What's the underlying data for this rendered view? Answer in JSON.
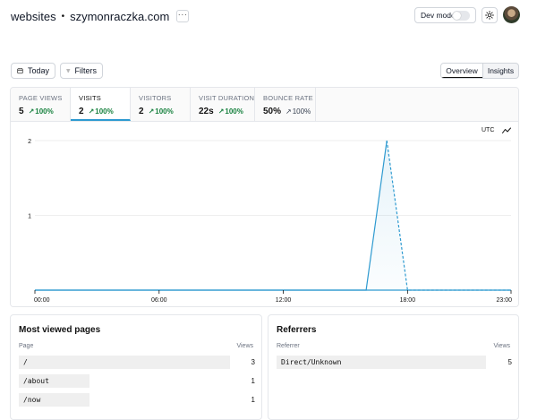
{
  "header": {
    "site_name": "websites",
    "separator": "•",
    "domain": "szymonraczka.com",
    "more_label": "···",
    "dev_mode_label": "Dev mode",
    "dev_mode_on": false
  },
  "toolbar": {
    "today_label": "Today",
    "filters_label": "Filters",
    "tabs": [
      {
        "label": "Overview",
        "active": true
      },
      {
        "label": "Insights",
        "active": false
      }
    ]
  },
  "stats": [
    {
      "label": "PAGE VIEWS",
      "value": "5",
      "change": "100%",
      "trend": "up",
      "active": false
    },
    {
      "label": "VISITS",
      "value": "2",
      "change": "100%",
      "trend": "up",
      "active": true
    },
    {
      "label": "VISITORS",
      "value": "2",
      "change": "100%",
      "trend": "up",
      "active": false
    },
    {
      "label": "VISIT DURATION",
      "value": "22s",
      "change": "100%",
      "trend": "up",
      "active": false
    },
    {
      "label": "BOUNCE RATE",
      "value": "50%",
      "change": "100%",
      "trend": "up-neutral",
      "active": false
    }
  ],
  "chart": {
    "timezone_label": "UTC",
    "accent_color": "#2e9ad0"
  },
  "chart_data": {
    "type": "line",
    "x_ticks": [
      "00:00",
      "06:00",
      "12:00",
      "18:00",
      "23:00"
    ],
    "y_ticks": [
      "1",
      "2"
    ],
    "ylim": [
      0,
      2
    ],
    "x_unit": "hour",
    "points": [
      {
        "x": 0,
        "y": 0
      },
      {
        "x": 16,
        "y": 0
      },
      {
        "x": 17,
        "y": 2
      },
      {
        "x": 18,
        "y": 0
      },
      {
        "x": 23,
        "y": 0
      }
    ],
    "projected_from_x": 17
  },
  "pages_panel": {
    "title": "Most viewed pages",
    "col_name": "Page",
    "col_value": "Views",
    "rows": [
      {
        "name": "/",
        "count": "3",
        "fraction": 1.0
      },
      {
        "name": "/about",
        "count": "1",
        "fraction": 0.333
      },
      {
        "name": "/now",
        "count": "1",
        "fraction": 0.333
      }
    ]
  },
  "referrers_panel": {
    "title": "Referrers",
    "col_name": "Referrer",
    "col_value": "Views",
    "rows": [
      {
        "name": "Direct/Unknown",
        "count": "5",
        "fraction": 1.0
      }
    ]
  }
}
